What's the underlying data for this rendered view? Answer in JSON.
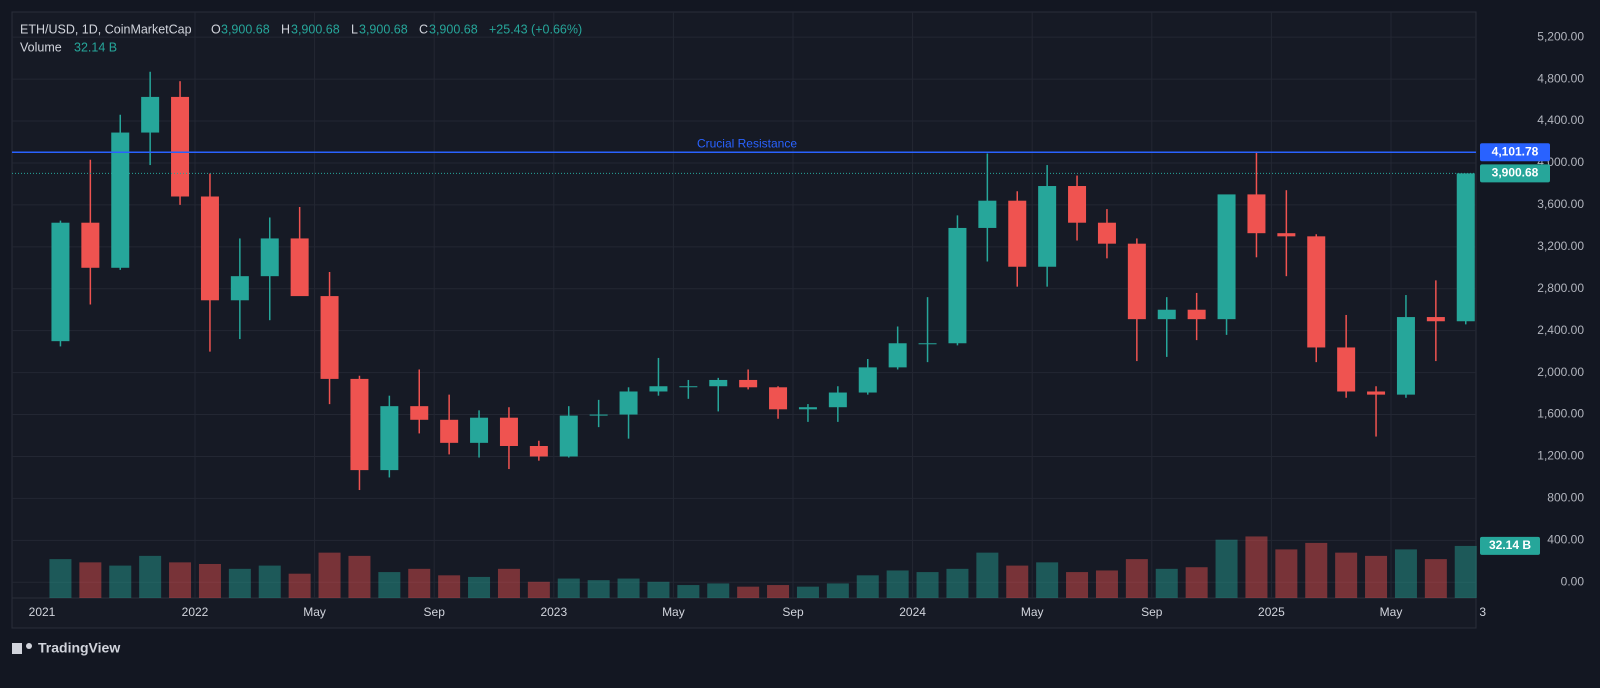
{
  "chart_data": {
    "type": "candlestick",
    "header": {
      "symbol": "ETH/USD, 1D, CoinMarketCap",
      "o_label": "O",
      "open": "3,900.68",
      "h_label": "H",
      "high": "3,900.68",
      "l_label": "L",
      "low": "3,900.68",
      "c_label": "C",
      "close": "3,900.68",
      "change": "+25.43 (+0.66%)",
      "volume_label": "Volume",
      "volume": "32.14 B"
    },
    "x": [
      "2021-08",
      "2021-09",
      "2021-10",
      "2021-11",
      "2021-12",
      "2022-01",
      "2022-02",
      "2022-03",
      "2022-04",
      "2022-05",
      "2022-06",
      "2022-07",
      "2022-08",
      "2022-09",
      "2022-10",
      "2022-11",
      "2022-12",
      "2023-01",
      "2023-02",
      "2023-03",
      "2023-04",
      "2023-05",
      "2023-06",
      "2023-07",
      "2023-08",
      "2023-09",
      "2023-10",
      "2023-11",
      "2023-12",
      "2024-01",
      "2024-02",
      "2024-03",
      "2024-04",
      "2024-05",
      "2024-06",
      "2024-07",
      "2024-08",
      "2024-09",
      "2024-10",
      "2024-11",
      "2024-12",
      "2025-01",
      "2025-02",
      "2025-03",
      "2025-04",
      "2025-05",
      "2025-06",
      "2025-07"
    ],
    "open": [
      2300,
      3430,
      3000,
      4290,
      4630,
      3680,
      2690,
      2920,
      3280,
      2730,
      1940,
      1070,
      1680,
      1550,
      1330,
      1570,
      1300,
      1200,
      1590,
      1600,
      1820,
      1870,
      1870,
      1930,
      1860,
      1650,
      1670,
      1810,
      2050,
      2280,
      2280,
      3380,
      3640,
      3010,
      3780,
      3430,
      3230,
      2510,
      2600,
      2510,
      3700,
      3330,
      3300,
      2240,
      1820,
      1790,
      2530,
      2490
    ],
    "high": [
      3450,
      4030,
      4460,
      4870,
      4780,
      3900,
      3280,
      3480,
      3580,
      2960,
      1970,
      1780,
      2030,
      1790,
      1640,
      1670,
      1350,
      1680,
      1740,
      1860,
      2140,
      1930,
      1950,
      2030,
      1870,
      1700,
      1870,
      2130,
      2440,
      2720,
      3500,
      4090,
      3730,
      3980,
      3880,
      3560,
      3280,
      2720,
      2760,
      3680,
      4110,
      3740,
      3320,
      2550,
      1870,
      2740,
      2880,
      3900
    ],
    "low": [
      2250,
      2650,
      2980,
      3980,
      3600,
      2200,
      2320,
      2500,
      2780,
      1700,
      880,
      1000,
      1420,
      1220,
      1190,
      1080,
      1160,
      1190,
      1480,
      1370,
      1780,
      1750,
      1630,
      1840,
      1560,
      1530,
      1530,
      1790,
      2030,
      2100,
      2260,
      3060,
      2820,
      2820,
      3260,
      3090,
      2110,
      2150,
      2310,
      2360,
      3100,
      2920,
      2100,
      1760,
      1390,
      1760,
      2110,
      2460
    ],
    "close": [
      3430,
      3000,
      4290,
      4630,
      3680,
      2690,
      2920,
      3280,
      2730,
      1940,
      1070,
      1680,
      1550,
      1330,
      1570,
      1300,
      1200,
      1590,
      1600,
      1820,
      1870,
      1870,
      1930,
      1860,
      1650,
      1670,
      1810,
      2050,
      2280,
      2280,
      3380,
      3640,
      3010,
      3780,
      3430,
      3230,
      2510,
      2600,
      2510,
      3700,
      3330,
      3300,
      2240,
      1820,
      1790,
      2530,
      2490,
      3900.68
    ],
    "volume": [
      24,
      22,
      20,
      26,
      22,
      21,
      18,
      20,
      15,
      28,
      26,
      16,
      18,
      14,
      13,
      18,
      10,
      12,
      11,
      12,
      10,
      8,
      9,
      7,
      8,
      7,
      9,
      14,
      17,
      16,
      18,
      28,
      20,
      22,
      16,
      17,
      24,
      18,
      19,
      36,
      38,
      30,
      34,
      28,
      26,
      30,
      24,
      32.14
    ],
    "up_color": "#26a69a",
    "down_color": "#ef5350",
    "ylim": [
      -150,
      5440
    ],
    "yticks": [
      {
        "value": 0,
        "label": "0.00"
      },
      {
        "value": 400,
        "label": "400.00"
      },
      {
        "value": 800,
        "label": "800.00"
      },
      {
        "value": 1200,
        "label": "1,200.00"
      },
      {
        "value": 1600,
        "label": "1,600.00"
      },
      {
        "value": 2000,
        "label": "2,000.00"
      },
      {
        "value": 2400,
        "label": "2,400.00"
      },
      {
        "value": 2800,
        "label": "2,800.00"
      },
      {
        "value": 3200,
        "label": "3,200.00"
      },
      {
        "value": 3600,
        "label": "3,600.00"
      },
      {
        "value": 4000,
        "label": "4,000.00"
      },
      {
        "value": 4400,
        "label": "4,400.00"
      },
      {
        "value": 4800,
        "label": "4,800.00"
      },
      {
        "value": 5200,
        "label": "5,200.00"
      }
    ],
    "volume_ylim": [
      0,
      100
    ],
    "xticks": [
      {
        "value": "2021-01",
        "label": "2021"
      },
      {
        "value": "2022-01",
        "label": "2022"
      },
      {
        "value": "2022-05",
        "label": "May"
      },
      {
        "value": "2022-09",
        "label": "Sep"
      },
      {
        "value": "2023-01",
        "label": "2023"
      },
      {
        "value": "2023-05",
        "label": "May"
      },
      {
        "value": "2023-09",
        "label": "Sep"
      },
      {
        "value": "2024-01",
        "label": "2024"
      },
      {
        "value": "2024-05",
        "label": "May"
      },
      {
        "value": "2024-09",
        "label": "Sep"
      },
      {
        "value": "2025-01",
        "label": "2025"
      },
      {
        "value": "2025-05",
        "label": "May"
      },
      {
        "value": "2025-08-03",
        "label": "3"
      }
    ],
    "resistance": {
      "value": 4101.78,
      "label": "4,101.78",
      "text": "Crucial Resistance",
      "color": "#2962ff"
    },
    "last_price": {
      "value": 3900.68,
      "label": "3,900.68"
    },
    "last_volume": {
      "value": 32.14,
      "label": "32.14 B"
    },
    "grid": true
  },
  "footer": {
    "brand": "TradingView"
  }
}
